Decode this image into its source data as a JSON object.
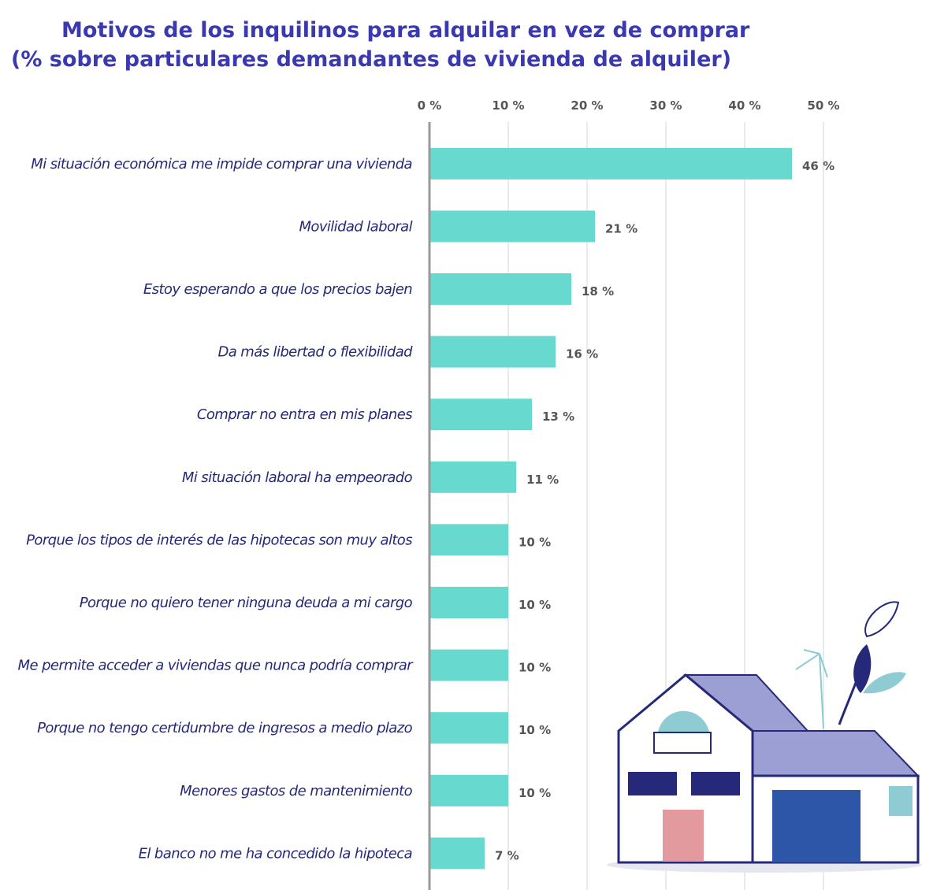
{
  "chart_data": {
    "type": "barh",
    "title": "Motivos de los inquilinos para alquilar en vez de comprar",
    "subtitle": "(% sobre particulares demandantes de vivienda de alquiler)",
    "categories": [
      "Mi situación económica me impide comprar una vivienda",
      "Movilidad laboral",
      "Estoy esperando a que los precios bajen",
      "Da más libertad o flexibilidad",
      "Comprar no entra en mis planes",
      "Mi situación laboral ha empeorado",
      "Porque los tipos de interés de las hipotecas son muy altos",
      "Porque no quiero tener ninguna deuda a mi cargo",
      "Me permite acceder a viviendas que nunca podría comprar",
      "Porque no tengo certidumbre de ingresos a medio plazo",
      "Menores gastos de mantenimiento",
      "El banco no me ha concedido la hipoteca"
    ],
    "values": [
      46,
      21,
      18,
      16,
      13,
      11,
      10,
      10,
      10,
      10,
      10,
      7
    ],
    "value_labels": [
      "46 %",
      "21 %",
      "18 %",
      "16 %",
      "13 %",
      "11 %",
      "10 %",
      "10 %",
      "10 %",
      "10 %",
      "10 %",
      "7 %"
    ],
    "color": "#67d9cf",
    "xlim": [
      0,
      50
    ],
    "xticks": [
      {
        "value": 0,
        "label": "0 %"
      },
      {
        "value": 10,
        "label": "10 %"
      },
      {
        "value": 20,
        "label": "20 %"
      },
      {
        "value": 30,
        "label": "30 %"
      },
      {
        "value": 40,
        "label": "40 %"
      },
      {
        "value": 50,
        "label": "50 %"
      }
    ],
    "grid": true
  }
}
